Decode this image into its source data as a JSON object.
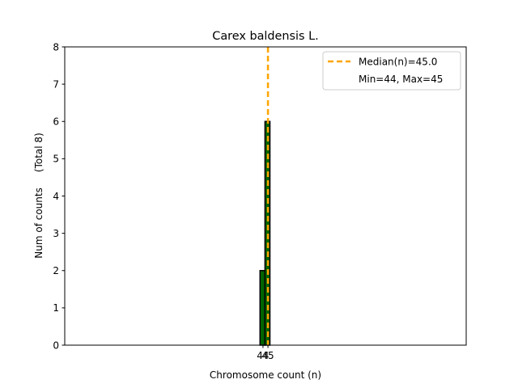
{
  "chart_data": {
    "type": "bar",
    "title": "Carex baldensis L.",
    "xlabel": "Chromosome count (n)",
    "ylabel": "Num of counts     (Total 8)",
    "xlim": [
      4.0,
      85.0
    ],
    "ylim": [
      0,
      8
    ],
    "yticks": [
      0,
      1,
      2,
      3,
      4,
      5,
      6,
      7,
      8
    ],
    "xticks": [
      44,
      45
    ],
    "bin_width": 1,
    "bars": [
      {
        "x": 44,
        "value": 2
      },
      {
        "x": 45,
        "value": 6
      }
    ],
    "median": 45.0,
    "legend": {
      "position": "top-right",
      "entries": [
        {
          "label": "Median(n)=45.0",
          "style": "dashed-line"
        },
        {
          "label": "Min=44, Max=45",
          "style": "none"
        }
      ]
    },
    "colors": {
      "bar_fill": "#006400",
      "bar_edge": "#000000",
      "median_line": "#FFA500"
    }
  }
}
